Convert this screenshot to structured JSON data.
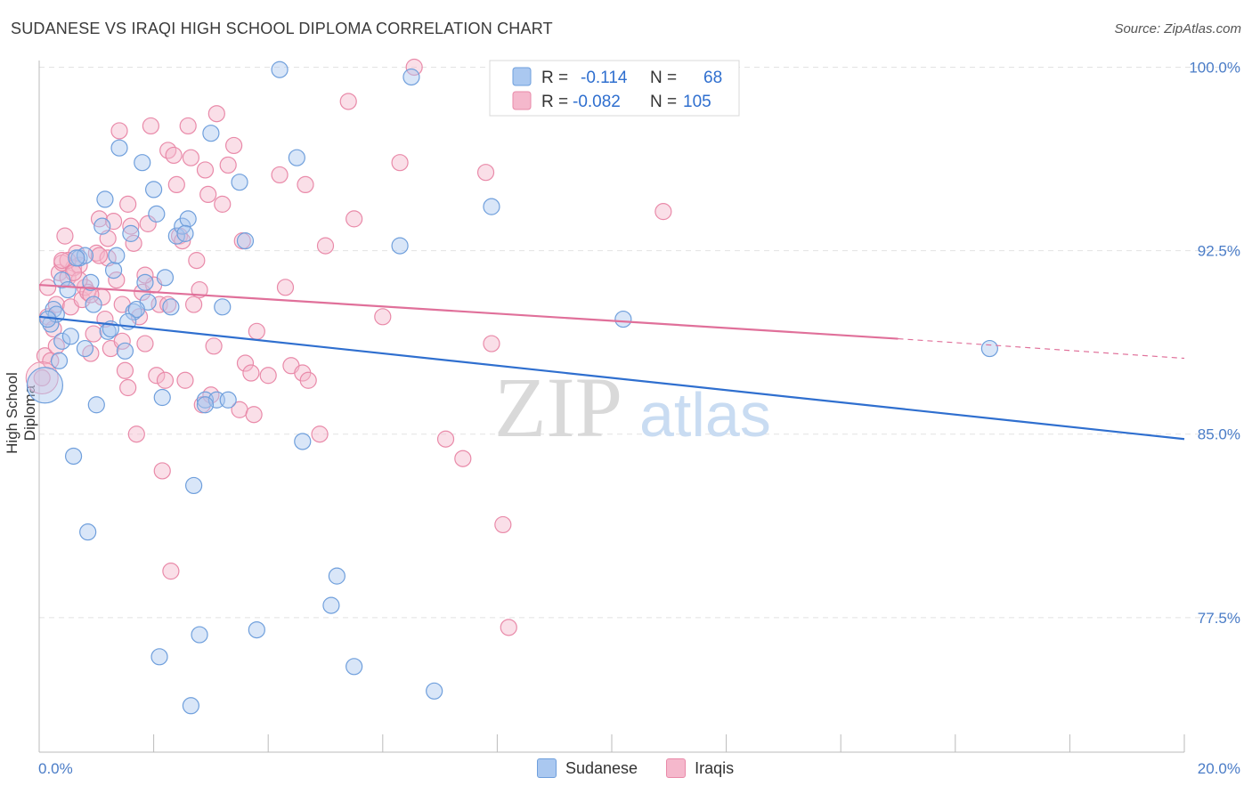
{
  "header": {
    "title": "SUDANESE VS IRAQI HIGH SCHOOL DIPLOMA CORRELATION CHART",
    "source": "Source: ZipAtlas.com"
  },
  "watermark": {
    "zip": "ZIP",
    "atlas": "atlas"
  },
  "colors": {
    "sudanese_fill": "#aac8f0",
    "sudanese_stroke": "#6f9fdc",
    "sudanese_line": "#2f6fcf",
    "iraqi_fill": "#f5b8cc",
    "iraqi_stroke": "#e98aa9",
    "iraqi_line": "#e0709a",
    "tick": "#4a7cc7"
  },
  "legend": {
    "r_label": "R =",
    "n_label": "N =",
    "items": [
      {
        "name": "Sudanese",
        "r": "-0.114",
        "n": "68"
      },
      {
        "name": "Iraqis",
        "r": "-0.082",
        "n": "105"
      }
    ]
  },
  "chart_data": {
    "type": "scatter",
    "title": "SUDANESE VS IRAQI HIGH SCHOOL DIPLOMA CORRELATION CHART",
    "xlabel": "",
    "ylabel": "High School Diploma",
    "xlim": [
      0,
      20
    ],
    "ylim": [
      72,
      100.2
    ],
    "x_tick_labels": [
      "0.0%",
      "20.0%"
    ],
    "y_ticks": [
      77.5,
      85.0,
      92.5,
      100.0
    ],
    "y_tick_labels": [
      "77.5%",
      "85.0%",
      "92.5%",
      "100.0%"
    ],
    "grid": true,
    "legend_position": "top-center",
    "series": [
      {
        "name": "Sudanese",
        "trend": {
          "x0": 0,
          "y0": 89.8,
          "x1": 20,
          "y1": 84.8
        },
        "points": [
          [
            0.1,
            87
          ],
          [
            0.2,
            89.5
          ],
          [
            0.25,
            90.1
          ],
          [
            0.3,
            89.9
          ],
          [
            0.35,
            88
          ],
          [
            0.4,
            91.3
          ],
          [
            0.4,
            88.8
          ],
          [
            0.5,
            90.9
          ],
          [
            0.55,
            89
          ],
          [
            0.6,
            84.1
          ],
          [
            0.7,
            92.2
          ],
          [
            0.8,
            88.5
          ],
          [
            0.8,
            92.3
          ],
          [
            0.85,
            81
          ],
          [
            0.9,
            91.2
          ],
          [
            1.0,
            86.2
          ],
          [
            1.1,
            93.5
          ],
          [
            1.15,
            94.6
          ],
          [
            1.2,
            89.2
          ],
          [
            1.3,
            91.7
          ],
          [
            1.4,
            96.7
          ],
          [
            1.5,
            88.4
          ],
          [
            1.6,
            93.2
          ],
          [
            1.65,
            90
          ],
          [
            1.8,
            96.1
          ],
          [
            1.85,
            91.2
          ],
          [
            1.9,
            90.4
          ],
          [
            2.0,
            95
          ],
          [
            2.05,
            94
          ],
          [
            2.15,
            86.5
          ],
          [
            2.2,
            91.4
          ],
          [
            2.3,
            90.2
          ],
          [
            2.4,
            93.1
          ],
          [
            2.5,
            93.5
          ],
          [
            2.6,
            93.8
          ],
          [
            2.65,
            73.9
          ],
          [
            2.7,
            82.9
          ],
          [
            2.8,
            76.8
          ],
          [
            2.9,
            86.4
          ],
          [
            3.0,
            97.3
          ],
          [
            3.1,
            86.4
          ],
          [
            3.2,
            90.2
          ],
          [
            3.3,
            86.4
          ],
          [
            3.5,
            95.3
          ],
          [
            3.6,
            92.9
          ],
          [
            3.8,
            77
          ],
          [
            4.2,
            99.9
          ],
          [
            4.5,
            96.3
          ],
          [
            4.6,
            84.7
          ],
          [
            5.1,
            78
          ],
          [
            5.2,
            79.2
          ],
          [
            5.5,
            75.5
          ],
          [
            6.3,
            92.7
          ],
          [
            6.5,
            99.6
          ],
          [
            6.9,
            74.5
          ],
          [
            7.9,
            94.3
          ],
          [
            10.2,
            89.7
          ],
          [
            16.6,
            88.5
          ],
          [
            0.15,
            89.7
          ],
          [
            1.7,
            90.1
          ],
          [
            2.55,
            93.2
          ],
          [
            1.35,
            92.3
          ],
          [
            0.95,
            90.3
          ],
          [
            1.55,
            89.6
          ],
          [
            2.1,
            75.9
          ],
          [
            0.65,
            92.2
          ],
          [
            1.25,
            89.3
          ],
          [
            2.9,
            86.2
          ]
        ]
      },
      {
        "name": "Iraqis",
        "trend": {
          "x0": 0,
          "y0": 91.1,
          "x1": 15,
          "y1": 88.9,
          "dash_to_x": 20,
          "dash_to_y": 88.1
        },
        "points": [
          [
            0.05,
            87.3
          ],
          [
            0.1,
            88.2
          ],
          [
            0.15,
            89.8
          ],
          [
            0.2,
            88
          ],
          [
            0.25,
            89.3
          ],
          [
            0.3,
            90.3
          ],
          [
            0.35,
            91.6
          ],
          [
            0.4,
            92
          ],
          [
            0.45,
            93.1
          ],
          [
            0.5,
            91.4
          ],
          [
            0.55,
            90.2
          ],
          [
            0.6,
            91.8
          ],
          [
            0.65,
            92.4
          ],
          [
            0.7,
            91.9
          ],
          [
            0.75,
            90.5
          ],
          [
            0.8,
            91
          ],
          [
            0.85,
            90.8
          ],
          [
            0.9,
            88.3
          ],
          [
            0.95,
            89.1
          ],
          [
            1.0,
            92.4
          ],
          [
            1.05,
            93.8
          ],
          [
            1.1,
            90.6
          ],
          [
            1.15,
            89.7
          ],
          [
            1.2,
            92.2
          ],
          [
            1.25,
            88.5
          ],
          [
            1.3,
            93.7
          ],
          [
            1.35,
            91.3
          ],
          [
            1.4,
            97.4
          ],
          [
            1.45,
            88.8
          ],
          [
            1.5,
            87.6
          ],
          [
            1.55,
            86.9
          ],
          [
            1.6,
            93.5
          ],
          [
            1.65,
            92.8
          ],
          [
            1.7,
            85
          ],
          [
            1.75,
            89.8
          ],
          [
            1.8,
            90.8
          ],
          [
            1.85,
            88.7
          ],
          [
            1.9,
            93.6
          ],
          [
            1.95,
            97.6
          ],
          [
            2.0,
            91.1
          ],
          [
            2.05,
            87.4
          ],
          [
            2.1,
            90.3
          ],
          [
            2.15,
            83.5
          ],
          [
            2.2,
            87.2
          ],
          [
            2.25,
            96.6
          ],
          [
            2.3,
            79.4
          ],
          [
            2.35,
            96.4
          ],
          [
            2.4,
            95.2
          ],
          [
            2.45,
            93.1
          ],
          [
            2.5,
            92.9
          ],
          [
            2.55,
            87.2
          ],
          [
            2.6,
            97.6
          ],
          [
            2.65,
            96.3
          ],
          [
            2.7,
            90.3
          ],
          [
            2.75,
            92.1
          ],
          [
            2.8,
            90.9
          ],
          [
            2.85,
            86.2
          ],
          [
            2.9,
            95.8
          ],
          [
            3.0,
            86.6
          ],
          [
            3.05,
            88.6
          ],
          [
            3.1,
            98.1
          ],
          [
            3.2,
            94.4
          ],
          [
            3.3,
            96
          ],
          [
            3.4,
            96.8
          ],
          [
            3.5,
            86
          ],
          [
            3.55,
            92.9
          ],
          [
            3.6,
            87.9
          ],
          [
            3.7,
            87.5
          ],
          [
            3.75,
            85.8
          ],
          [
            3.8,
            89.2
          ],
          [
            4.0,
            87.4
          ],
          [
            4.2,
            95.6
          ],
          [
            4.3,
            91
          ],
          [
            4.4,
            87.8
          ],
          [
            4.6,
            87.5
          ],
          [
            4.65,
            95.2
          ],
          [
            4.7,
            87.2
          ],
          [
            4.9,
            85
          ],
          [
            5.0,
            92.7
          ],
          [
            5.4,
            98.6
          ],
          [
            5.5,
            93.8
          ],
          [
            6.0,
            89.8
          ],
          [
            6.3,
            96.1
          ],
          [
            6.55,
            100
          ],
          [
            7.1,
            84.8
          ],
          [
            7.4,
            84
          ],
          [
            7.8,
            95.7
          ],
          [
            7.9,
            88.7
          ],
          [
            8.1,
            81.3
          ],
          [
            8.2,
            77.1
          ],
          [
            10.9,
            94.1
          ],
          [
            0.5,
            92.1
          ],
          [
            1.05,
            92.3
          ],
          [
            1.45,
            90.3
          ],
          [
            1.85,
            91.5
          ],
          [
            2.25,
            90.3
          ],
          [
            0.3,
            88.6
          ],
          [
            0.7,
            91.3
          ],
          [
            1.2,
            93
          ],
          [
            0.6,
            91.6
          ],
          [
            0.15,
            91
          ],
          [
            0.4,
            92.1
          ],
          [
            0.9,
            90.7
          ],
          [
            1.55,
            94.4
          ],
          [
            2.95,
            94.8
          ]
        ]
      }
    ]
  }
}
